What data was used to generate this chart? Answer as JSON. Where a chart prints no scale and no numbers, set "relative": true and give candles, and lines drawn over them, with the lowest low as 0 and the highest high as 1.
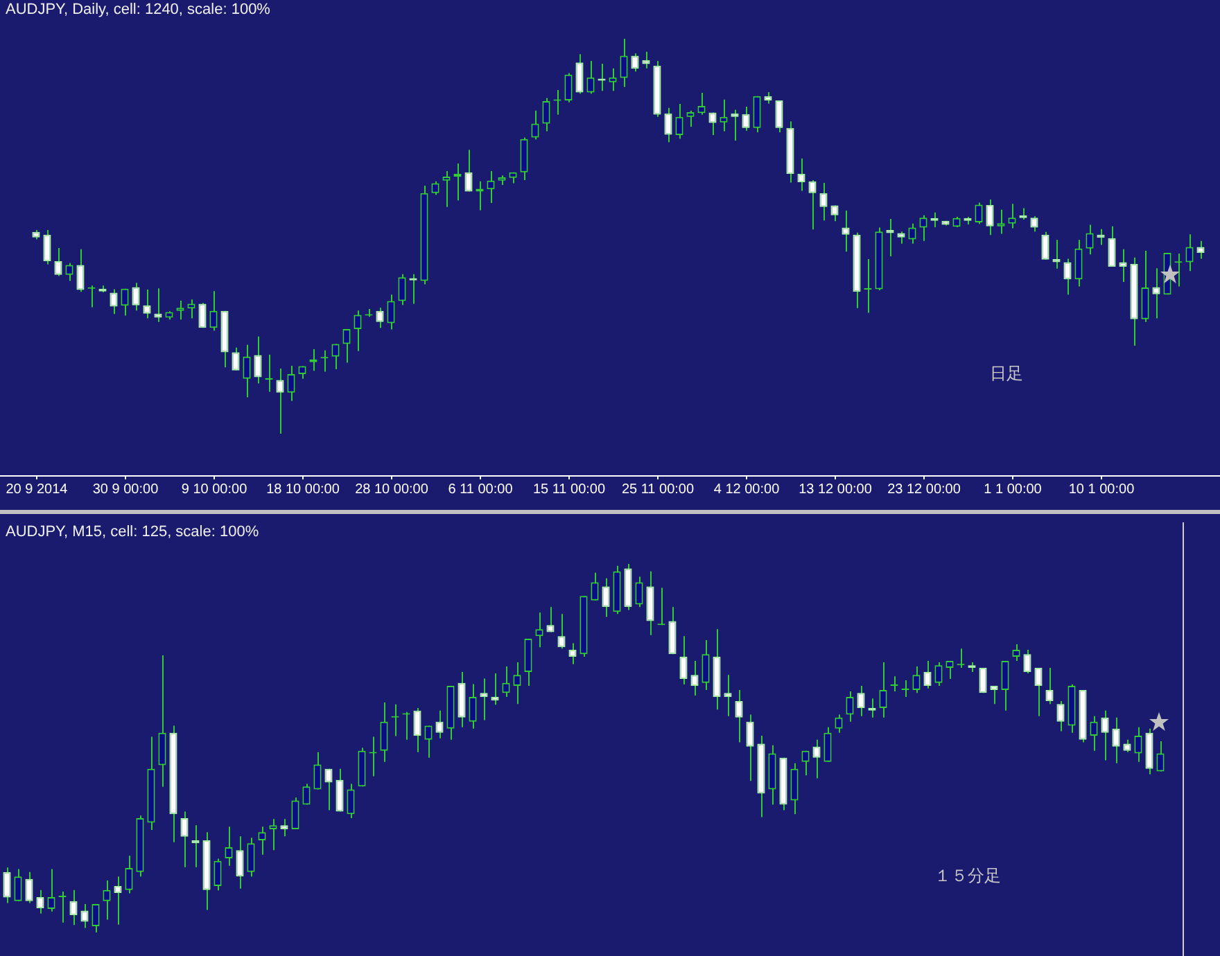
{
  "chart_data": [
    {
      "type": "candlestick",
      "title": "AUDJPY, Daily, cell: 1240, scale: 100%",
      "relative": true,
      "tick_labels": "x",
      "annotations": [
        "日足"
      ],
      "categories": [
        "20 9 2014",
        null,
        null,
        null,
        null,
        null,
        null,
        null,
        "30 9 00:00",
        null,
        null,
        null,
        null,
        null,
        null,
        null,
        "9 10 00:00",
        null,
        null,
        null,
        null,
        null,
        null,
        null,
        "18 10 00:00",
        null,
        null,
        null,
        null,
        null,
        null,
        null,
        "28 10 00:00",
        null,
        null,
        null,
        null,
        null,
        null,
        null,
        "6 11 00:00",
        null,
        null,
        null,
        null,
        null,
        null,
        null,
        "15 11 00:00",
        null,
        null,
        null,
        null,
        null,
        null,
        null,
        "25 11 00:00",
        null,
        null,
        null,
        null,
        null,
        null,
        null,
        "4 12 00:00",
        null,
        null,
        null,
        null,
        null,
        null,
        null,
        "13 12 00:00",
        null,
        null,
        null,
        null,
        null,
        null,
        null,
        "23 12 00:00",
        null,
        null,
        null,
        null,
        null,
        null,
        null,
        "1 1 00:00",
        null,
        null,
        null,
        null,
        null,
        null,
        null,
        "10 1 00:00",
        null,
        null,
        null,
        null,
        null,
        null,
        null,
        null,
        null
      ],
      "ohlc": [
        [
          0.511,
          0.516,
          0.492,
          0.497
        ],
        [
          0.504,
          0.516,
          0.429,
          0.437
        ],
        [
          0.437,
          0.47,
          0.399,
          0.402
        ],
        [
          0.402,
          0.432,
          0.387,
          0.427
        ],
        [
          0.427,
          0.467,
          0.359,
          0.364
        ],
        [
          0.367,
          0.375,
          0.32,
          0.367
        ],
        [
          0.367,
          0.375,
          0.358,
          0.36
        ],
        [
          0.357,
          0.366,
          0.303,
          0.322
        ],
        [
          0.324,
          0.367,
          0.299,
          0.367
        ],
        [
          0.371,
          0.382,
          0.312,
          0.325
        ],
        [
          0.325,
          0.365,
          0.292,
          0.304
        ],
        [
          0.304,
          0.368,
          0.283,
          0.294
        ],
        [
          0.294,
          0.31,
          0.289,
          0.308
        ],
        [
          0.311,
          0.337,
          0.289,
          0.319
        ],
        [
          0.317,
          0.34,
          0.292,
          0.329
        ],
        [
          0.329,
          0.331,
          0.268,
          0.268
        ],
        [
          0.268,
          0.361,
          0.261,
          0.311
        ],
        [
          0.311,
          0.311,
          0.168,
          0.206
        ],
        [
          0.206,
          0.218,
          0.16,
          0.16
        ],
        [
          0.139,
          0.225,
          0.092,
          0.195
        ],
        [
          0.199,
          0.246,
          0.127,
          0.143
        ],
        [
          0.137,
          0.2,
          0.106,
          0.137
        ],
        [
          0.136,
          0.165,
          0,
          0.104
        ],
        [
          0.104,
          0.172,
          0.083,
          0.151
        ],
        [
          0.151,
          0.171,
          0.139,
          0.171
        ],
        [
          0.181,
          0.214,
          0.159,
          0.188
        ],
        [
          0.191,
          0.211,
          0.157,
          0.191
        ],
        [
          0.195,
          0.227,
          0.163,
          0.227
        ],
        [
          0.227,
          0.265,
          0.18,
          0.265
        ],
        [
          0.265,
          0.312,
          0.209,
          0.301
        ],
        [
          0.299,
          0.316,
          0.296,
          0.299
        ],
        [
          0.311,
          0.319,
          0.268,
          0.283
        ],
        [
          0.28,
          0.352,
          0.264,
          0.336
        ],
        [
          0.336,
          0.404,
          0.326,
          0.396
        ],
        [
          0.394,
          0.404,
          0.329,
          0.388
        ],
        [
          0.387,
          0.628,
          0.378,
          0.609
        ],
        [
          0.609,
          0.639,
          0.605,
          0.634
        ],
        [
          0.641,
          0.665,
          0.574,
          0.651
        ],
        [
          0.651,
          0.684,
          0.591,
          0.658
        ],
        [
          0.662,
          0.719,
          0.613,
          0.613
        ],
        [
          0.613,
          0.639,
          0.566,
          0.62
        ],
        [
          0.619,
          0.665,
          0.584,
          0.641
        ],
        [
          0.641,
          0.654,
          0.63,
          0.649
        ],
        [
          0.648,
          0.662,
          0.634,
          0.662
        ],
        [
          0.662,
          0.75,
          0.642,
          0.746
        ],
        [
          0.75,
          0.818,
          0.745,
          0.785
        ],
        [
          0.785,
          0.85,
          0.766,
          0.842
        ],
        [
          0.843,
          0.87,
          0.808,
          0.843
        ],
        [
          0.844,
          0.913,
          0.839,
          0.909
        ],
        [
          0.94,
          0.961,
          0.861,
          0.864
        ],
        [
          0.864,
          0.944,
          0.861,
          0.902
        ],
        [
          0.899,
          0.937,
          0.868,
          0.894
        ],
        [
          0.89,
          0.925,
          0.868,
          0.902
        ],
        [
          0.901,
          1,
          0.878,
          0.957
        ],
        [
          0.957,
          0.963,
          0.917,
          0.924
        ],
        [
          0.946,
          0.967,
          0.925,
          0.936
        ],
        [
          0.932,
          0.944,
          0.802,
          0.808
        ],
        [
          0.811,
          0.825,
          0.738,
          0.757
        ],
        [
          0.756,
          0.835,
          0.747,
          0.802
        ],
        [
          0.802,
          0.818,
          0.777,
          0.814
        ],
        [
          0.812,
          0.863,
          0.808,
          0.83
        ],
        [
          0.813,
          0.813,
          0.756,
          0.787
        ],
        [
          0.788,
          0.846,
          0.766,
          0.802
        ],
        [
          0.811,
          0.82,
          0.742,
          0.802
        ],
        [
          0.809,
          0.828,
          0.767,
          0.774
        ],
        [
          0.774,
          0.855,
          0.763,
          0.855
        ],
        [
          0.855,
          0.865,
          0.836,
          0.844
        ],
        [
          0.844,
          0.844,
          0.763,
          0.774
        ],
        [
          0.774,
          0.791,
          0.636,
          0.658
        ],
        [
          0.658,
          0.697,
          0.615,
          0.637
        ],
        [
          0.639,
          0.642,
          0.517,
          0.609
        ],
        [
          0.609,
          0.635,
          0.54,
          0.574
        ],
        [
          0.578,
          0.578,
          0.538,
          0.553
        ],
        [
          0.522,
          0.565,
          0.461,
          0.504
        ],
        [
          0.504,
          0.509,
          0.318,
          0.359
        ],
        [
          0.365,
          0.442,
          0.306,
          0.365
        ],
        [
          0.366,
          0.522,
          0.363,
          0.512
        ],
        [
          0.516,
          0.544,
          0.449,
          0.508
        ],
        [
          0.508,
          0.512,
          0.481,
          0.497
        ],
        [
          0.492,
          0.532,
          0.481,
          0.522
        ],
        [
          0.522,
          0.553,
          0.488,
          0.547
        ],
        [
          0.546,
          0.56,
          0.523,
          0.539
        ],
        [
          0.539,
          0.539,
          0.527,
          0.529
        ],
        [
          0.524,
          0.549,
          0.523,
          0.546
        ],
        [
          0.546,
          0.549,
          0.53,
          0.539
        ],
        [
          0.535,
          0.585,
          0.531,
          0.58
        ],
        [
          0.579,
          0.593,
          0.503,
          0.525
        ],
        [
          0.525,
          0.567,
          0.506,
          0.533
        ],
        [
          0.532,
          0.582,
          0.52,
          0.547
        ],
        [
          0.553,
          0.571,
          0.542,
          0.546
        ],
        [
          0.547,
          0.551,
          0.512,
          0.522
        ],
        [
          0.504,
          0.511,
          0.441,
          0.441
        ],
        [
          0.442,
          0.491,
          0.418,
          0.434
        ],
        [
          0.434,
          0.443,
          0.352,
          0.391
        ],
        [
          0.391,
          0.491,
          0.373,
          0.469
        ],
        [
          0.469,
          0.529,
          0.454,
          0.508
        ],
        [
          0.504,
          0.518,
          0.478,
          0.496
        ],
        [
          0.495,
          0.525,
          0.423,
          0.423
        ],
        [
          0.434,
          0.467,
          0.384,
          0.423
        ],
        [
          0.43,
          0.446,
          0.223,
          0.29
        ],
        [
          0.29,
          0.463,
          0.283,
          0.37
        ],
        [
          0.371,
          0.419,
          0.292,
          0.353
        ],
        [
          0.352,
          0.458,
          0.352,
          0.458
        ],
        [
          0.433,
          0.456,
          0.373,
          0.433
        ],
        [
          0.434,
          0.505,
          0.412,
          0.473
        ],
        [
          0.473,
          0.488,
          0.443,
          0.458
        ]
      ]
    },
    {
      "type": "candlestick",
      "title": "AUDJPY, M15, cell: 125, scale: 100%",
      "relative": true,
      "tick_labels": false,
      "annotations": [
        "１５分足"
      ],
      "categories": [
        null,
        null,
        null,
        null,
        null,
        null,
        null,
        null,
        null,
        null,
        null,
        null,
        null,
        null,
        null,
        null,
        null,
        null,
        null,
        null,
        null,
        null,
        null,
        null,
        null,
        null,
        null,
        null,
        null,
        null,
        null,
        null,
        null,
        null,
        null,
        null,
        null,
        null,
        null,
        null,
        null,
        null,
        null,
        null,
        null,
        null,
        null,
        null,
        null,
        null,
        null,
        null,
        null,
        null,
        null,
        null,
        null,
        null,
        null,
        null,
        null,
        null,
        null,
        null,
        null,
        null,
        null,
        null,
        null,
        null,
        null,
        null,
        null,
        null,
        null,
        null,
        null,
        null,
        null,
        null,
        null,
        null,
        null,
        null,
        null,
        null,
        null,
        null,
        null,
        null,
        null,
        null,
        null,
        null,
        null,
        null,
        null,
        null,
        null,
        null,
        null,
        null,
        null,
        null,
        null
      ],
      "ohlc": [
        [
          0.164,
          0.176,
          0.08,
          0.095
        ],
        [
          0.085,
          0.172,
          0.085,
          0.152
        ],
        [
          0.145,
          0.164,
          0.08,
          0.085
        ],
        [
          0.096,
          0.115,
          0.051,
          0.066
        ],
        [
          0.064,
          0.172,
          0.057,
          0.096
        ],
        [
          0.096,
          0.111,
          0.027,
          0.096
        ],
        [
          0.085,
          0.115,
          0.02,
          0.047
        ],
        [
          0.059,
          0.077,
          0.012,
          0.029
        ],
        [
          0.017,
          0.077,
          0,
          0.077
        ],
        [
          0.085,
          0.141,
          0.035,
          0.115
        ],
        [
          0.126,
          0.152,
          0.021,
          0.107
        ],
        [
          0.115,
          0.208,
          0.106,
          0.175
        ],
        [
          0.164,
          0.317,
          0.152,
          0.31
        ],
        [
          0.298,
          0.531,
          0.278,
          0.444
        ],
        [
          0.454,
          0.752,
          0.395,
          0.542
        ],
        [
          0.542,
          0.561,
          0.245,
          0.321
        ],
        [
          0.31,
          0.328,
          0.177,
          0.26
        ],
        [
          0.25,
          0.291,
          0.177,
          0.242
        ],
        [
          0.25,
          0.272,
          0.061,
          0.115
        ],
        [
          0.126,
          0.2,
          0.114,
          0.194
        ],
        [
          0.201,
          0.287,
          0.181,
          0.231
        ],
        [
          0.223,
          0.261,
          0.119,
          0.152
        ],
        [
          0.164,
          0.257,
          0.152,
          0.242
        ],
        [
          0.25,
          0.287,
          0.211,
          0.272
        ],
        [
          0.28,
          0.308,
          0.223,
          0.291
        ],
        [
          0.291,
          0.308,
          0.261,
          0.28
        ],
        [
          0.28,
          0.366,
          0.28,
          0.358
        ],
        [
          0.347,
          0.403,
          0.347,
          0.396
        ],
        [
          0.388,
          0.489,
          0.388,
          0.456
        ],
        [
          0.444,
          0.444,
          0.332,
          0.407
        ],
        [
          0.414,
          0.444,
          0.328,
          0.328
        ],
        [
          0.321,
          0.403,
          0.31,
          0.388
        ],
        [
          0.396,
          0.501,
          0.396,
          0.493
        ],
        [
          0.486,
          0.531,
          0.424,
          0.486
        ],
        [
          0.493,
          0.624,
          0.463,
          0.572
        ],
        [
          0.583,
          0.619,
          0.533,
          0.583
        ],
        [
          0.591,
          0.598,
          0.523,
          0.591
        ],
        [
          0.602,
          0.609,
          0.489,
          0.534
        ],
        [
          0.523,
          0.561,
          0.474,
          0.561
        ],
        [
          0.572,
          0.602,
          0.527,
          0.542
        ],
        [
          0.553,
          0.669,
          0.523,
          0.669
        ],
        [
          0.677,
          0.707,
          0.557,
          0.583
        ],
        [
          0.572,
          0.674,
          0.553,
          0.639
        ],
        [
          0.65,
          0.689,
          0.576,
          0.639
        ],
        [
          0.639,
          0.703,
          0.618,
          0.629
        ],
        [
          0.65,
          0.722,
          0.639,
          0.677
        ],
        [
          0.669,
          0.733,
          0.62,
          0.699
        ],
        [
          0.707,
          0.797,
          0.669,
          0.797
        ],
        [
          0.804,
          0.868,
          0.774,
          0.823
        ],
        [
          0.834,
          0.883,
          0.815,
          0.815
        ],
        [
          0.804,
          0.864,
          0.77,
          0.774
        ],
        [
          0.767,
          0.785,
          0.728,
          0.748
        ],
        [
          0.755,
          0.913,
          0.748,
          0.913
        ],
        [
          0.901,
          0.976,
          0.901,
          0.95
        ],
        [
          0.939,
          0.961,
          0.856,
          0.883
        ],
        [
          0.87,
          0.995,
          0.864,
          0.98
        ],
        [
          0.988,
          1,
          0.875,
          0.883
        ],
        [
          0.89,
          0.965,
          0.883,
          0.95
        ],
        [
          0.939,
          0.98,
          0.807,
          0.845
        ],
        [
          0.834,
          0.935,
          0.834,
          0.834
        ],
        [
          0.845,
          0.883,
          0.755,
          0.755
        ],
        [
          0.748,
          0.804,
          0.673,
          0.688
        ],
        [
          0.699,
          0.737,
          0.643,
          0.669
        ],
        [
          0.677,
          0.793,
          0.658,
          0.755
        ],
        [
          0.748,
          0.823,
          0.605,
          0.639
        ],
        [
          0.65,
          0.699,
          0.587,
          0.639
        ],
        [
          0.628,
          0.658,
          0.516,
          0.583
        ],
        [
          0.572,
          0.591,
          0.411,
          0.504
        ],
        [
          0.512,
          0.534,
          0.313,
          0.377
        ],
        [
          0.388,
          0.508,
          0.347,
          0.486
        ],
        [
          0.474,
          0.474,
          0.332,
          0.347
        ],
        [
          0.358,
          0.459,
          0.321,
          0.444
        ],
        [
          0.463,
          0.493,
          0.426,
          0.493
        ],
        [
          0.504,
          0.523,
          0.418,
          0.474
        ],
        [
          0.463,
          0.557,
          0.463,
          0.542
        ],
        [
          0.553,
          0.591,
          0.542,
          0.583
        ],
        [
          0.591,
          0.654,
          0.572,
          0.639
        ],
        [
          0.65,
          0.669,
          0.587,
          0.609
        ],
        [
          0.609,
          0.635,
          0.583,
          0.602
        ],
        [
          0.609,
          0.733,
          0.583,
          0.658
        ],
        [
          0.669,
          0.695,
          0.654,
          0.669
        ],
        [
          0.658,
          0.684,
          0.639,
          0.658
        ],
        [
          0.658,
          0.722,
          0.65,
          0.699
        ],
        [
          0.707,
          0.737,
          0.662,
          0.669
        ],
        [
          0.677,
          0.733,
          0.669,
          0.725
        ],
        [
          0.718,
          0.737,
          0.688,
          0.737
        ],
        [
          0.725,
          0.77,
          0.718,
          0.725
        ],
        [
          0.725,
          0.733,
          0.707,
          0.718
        ],
        [
          0.718,
          0.718,
          0.65,
          0.65
        ],
        [
          0.669,
          0.669,
          0.62,
          0.658
        ],
        [
          0.658,
          0.737,
          0.602,
          0.737
        ],
        [
          0.748,
          0.782,
          0.737,
          0.767
        ],
        [
          0.755,
          0.767,
          0.703,
          0.707
        ],
        [
          0.718,
          0.718,
          0.587,
          0.669
        ],
        [
          0.658,
          0.718,
          0.62,
          0.628
        ],
        [
          0.62,
          0.628,
          0.546,
          0.572
        ],
        [
          0.561,
          0.673,
          0.542,
          0.669
        ],
        [
          0.658,
          0.658,
          0.516,
          0.523
        ],
        [
          0.534,
          0.587,
          0.493,
          0.572
        ],
        [
          0.583,
          0.602,
          0.467,
          0.542
        ],
        [
          0.553,
          0.583,
          0.459,
          0.504
        ],
        [
          0.512,
          0.523,
          0.489,
          0.493
        ],
        [
          0.486,
          0.557,
          0.463,
          0.534
        ],
        [
          0.542,
          0.553,
          0.429,
          0.444
        ],
        [
          0.437,
          0.519,
          0.437,
          0.486
        ]
      ]
    }
  ]
}
